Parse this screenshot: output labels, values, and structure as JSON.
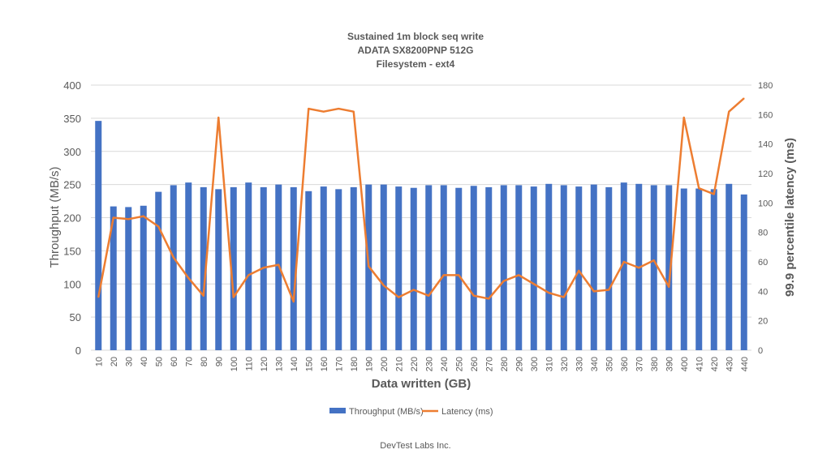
{
  "chart_data": {
    "type": "bar",
    "title": [
      "Sustained 1m block seq write",
      "ADATA SX8200PNP 512G",
      "Filesystem - ext4"
    ],
    "xlabel": "Data written (GB)",
    "ylabel": "Throughput (MB/s)",
    "y2label": "99.9 percentile latency (ms)",
    "ylim": [
      0,
      400
    ],
    "yticks": [
      0,
      50,
      100,
      150,
      200,
      250,
      300,
      350,
      400
    ],
    "y2lim": [
      0,
      180
    ],
    "y2ticks": [
      0,
      20,
      40,
      60,
      80,
      100,
      120,
      140,
      160,
      180
    ],
    "grid": true,
    "legend_position": "bottom",
    "categories": [
      "10",
      "20",
      "30",
      "40",
      "50",
      "60",
      "70",
      "80",
      "90",
      "100",
      "110",
      "120",
      "130",
      "140",
      "150",
      "160",
      "170",
      "180",
      "190",
      "200",
      "210",
      "220",
      "230",
      "240",
      "250",
      "260",
      "270",
      "280",
      "290",
      "300",
      "310",
      "320",
      "330",
      "340",
      "350",
      "360",
      "370",
      "380",
      "390",
      "400",
      "410",
      "420",
      "430",
      "440"
    ],
    "series": [
      {
        "name": "Throughput (MB/s)",
        "type": "bar",
        "axis": "left",
        "color": "#4472C4",
        "values": [
          346,
          217,
          216,
          218,
          239,
          249,
          253,
          246,
          243,
          246,
          253,
          246,
          250,
          246,
          240,
          247,
          243,
          246,
          250,
          250,
          247,
          245,
          249,
          249,
          245,
          248,
          246,
          249,
          249,
          247,
          251,
          249,
          247,
          250,
          246,
          253,
          251,
          249,
          249,
          244,
          244,
          243,
          251,
          235
        ]
      },
      {
        "name": "Latency (ms)",
        "type": "line",
        "axis": "right",
        "color": "#ED7D31",
        "values": [
          36,
          90,
          89,
          91,
          84,
          63,
          49,
          37,
          158,
          36,
          51,
          56,
          58,
          33,
          164,
          162,
          164,
          162,
          57,
          44,
          36,
          41,
          37,
          51,
          51,
          37,
          35,
          47,
          51,
          45,
          39,
          36,
          54,
          40,
          41,
          60,
          56,
          61,
          43,
          158,
          110,
          106,
          162,
          171
        ]
      }
    ]
  },
  "footer": "DevTest Labs Inc."
}
